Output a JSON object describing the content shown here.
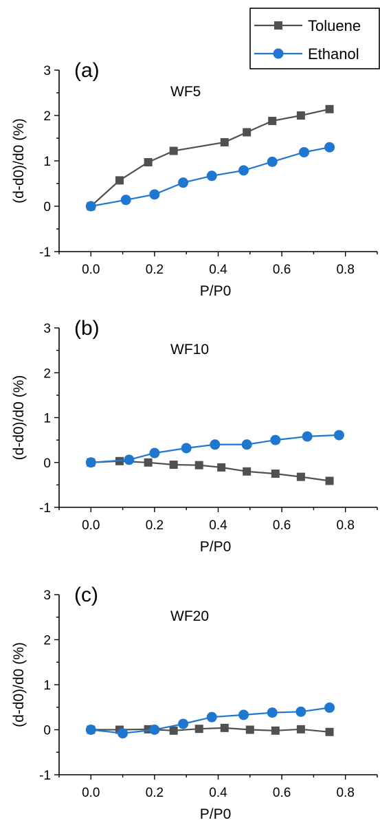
{
  "legend": {
    "entries": [
      {
        "name": "Toluene",
        "color": "#505050",
        "marker": "square"
      },
      {
        "name": "Ethanol",
        "color": "#1f77d0",
        "marker": "circle"
      }
    ]
  },
  "chart_data": [
    {
      "type": "line",
      "panel_label": "(a)",
      "title": "WF5",
      "xlabel": "P/P0",
      "ylabel": "(d-d0)/d0 (%)",
      "xlim": [
        -0.1,
        0.9
      ],
      "ylim": [
        -1,
        3
      ],
      "xticks": [
        "0.0",
        "0.2",
        "0.4",
        "0.6",
        "0.8"
      ],
      "yticks": [
        "-1",
        "0",
        "1",
        "2",
        "3"
      ],
      "series": [
        {
          "name": "Toluene",
          "x": [
            0.0,
            0.09,
            0.18,
            0.26,
            0.42,
            0.49,
            0.57,
            0.66,
            0.75
          ],
          "y": [
            0.0,
            0.57,
            0.97,
            1.22,
            1.41,
            1.63,
            1.88,
            2.0,
            2.14
          ]
        },
        {
          "name": "Ethanol",
          "x": [
            0.0,
            0.11,
            0.2,
            0.29,
            0.38,
            0.48,
            0.57,
            0.67,
            0.75
          ],
          "y": [
            0.0,
            0.14,
            0.26,
            0.52,
            0.67,
            0.79,
            0.98,
            1.19,
            1.3
          ]
        }
      ]
    },
    {
      "type": "line",
      "panel_label": "(b)",
      "title": "WF10",
      "xlabel": "P/P0",
      "ylabel": "(d-d0)/d0 (%)",
      "xlim": [
        -0.1,
        0.9
      ],
      "ylim": [
        -1,
        3
      ],
      "xticks": [
        "0.0",
        "0.2",
        "0.4",
        "0.6",
        "0.8"
      ],
      "yticks": [
        "-1",
        "0",
        "1",
        "2",
        "3"
      ],
      "series": [
        {
          "name": "Toluene",
          "x": [
            0.0,
            0.09,
            0.18,
            0.26,
            0.34,
            0.41,
            0.49,
            0.58,
            0.66,
            0.75
          ],
          "y": [
            0.0,
            0.03,
            0.0,
            -0.05,
            -0.06,
            -0.11,
            -0.2,
            -0.25,
            -0.32,
            -0.41
          ]
        },
        {
          "name": "Ethanol",
          "x": [
            0.0,
            0.12,
            0.2,
            0.3,
            0.39,
            0.49,
            0.58,
            0.68,
            0.78
          ],
          "y": [
            0.0,
            0.06,
            0.21,
            0.32,
            0.4,
            0.4,
            0.5,
            0.58,
            0.61
          ]
        }
      ]
    },
    {
      "type": "line",
      "panel_label": "(c)",
      "title": "WF20",
      "xlabel": "P/P0",
      "ylabel": "(d-d0)/d0 (%)",
      "xlim": [
        -0.1,
        0.9
      ],
      "ylim": [
        -1,
        3
      ],
      "xticks": [
        "0.0",
        "0.2",
        "0.4",
        "0.6",
        "0.8"
      ],
      "yticks": [
        "-1",
        "0",
        "1",
        "2",
        "3"
      ],
      "series": [
        {
          "name": "Toluene",
          "x": [
            0.0,
            0.09,
            0.18,
            0.26,
            0.34,
            0.42,
            0.5,
            0.58,
            0.66,
            0.75
          ],
          "y": [
            0.0,
            0.0,
            0.01,
            -0.02,
            0.02,
            0.04,
            0.0,
            -0.02,
            0.01,
            -0.05
          ]
        },
        {
          "name": "Ethanol",
          "x": [
            0.0,
            0.1,
            0.2,
            0.29,
            0.38,
            0.48,
            0.57,
            0.66,
            0.75
          ],
          "y": [
            0.0,
            -0.08,
            0.0,
            0.13,
            0.28,
            0.33,
            0.38,
            0.4,
            0.49
          ]
        }
      ]
    }
  ]
}
